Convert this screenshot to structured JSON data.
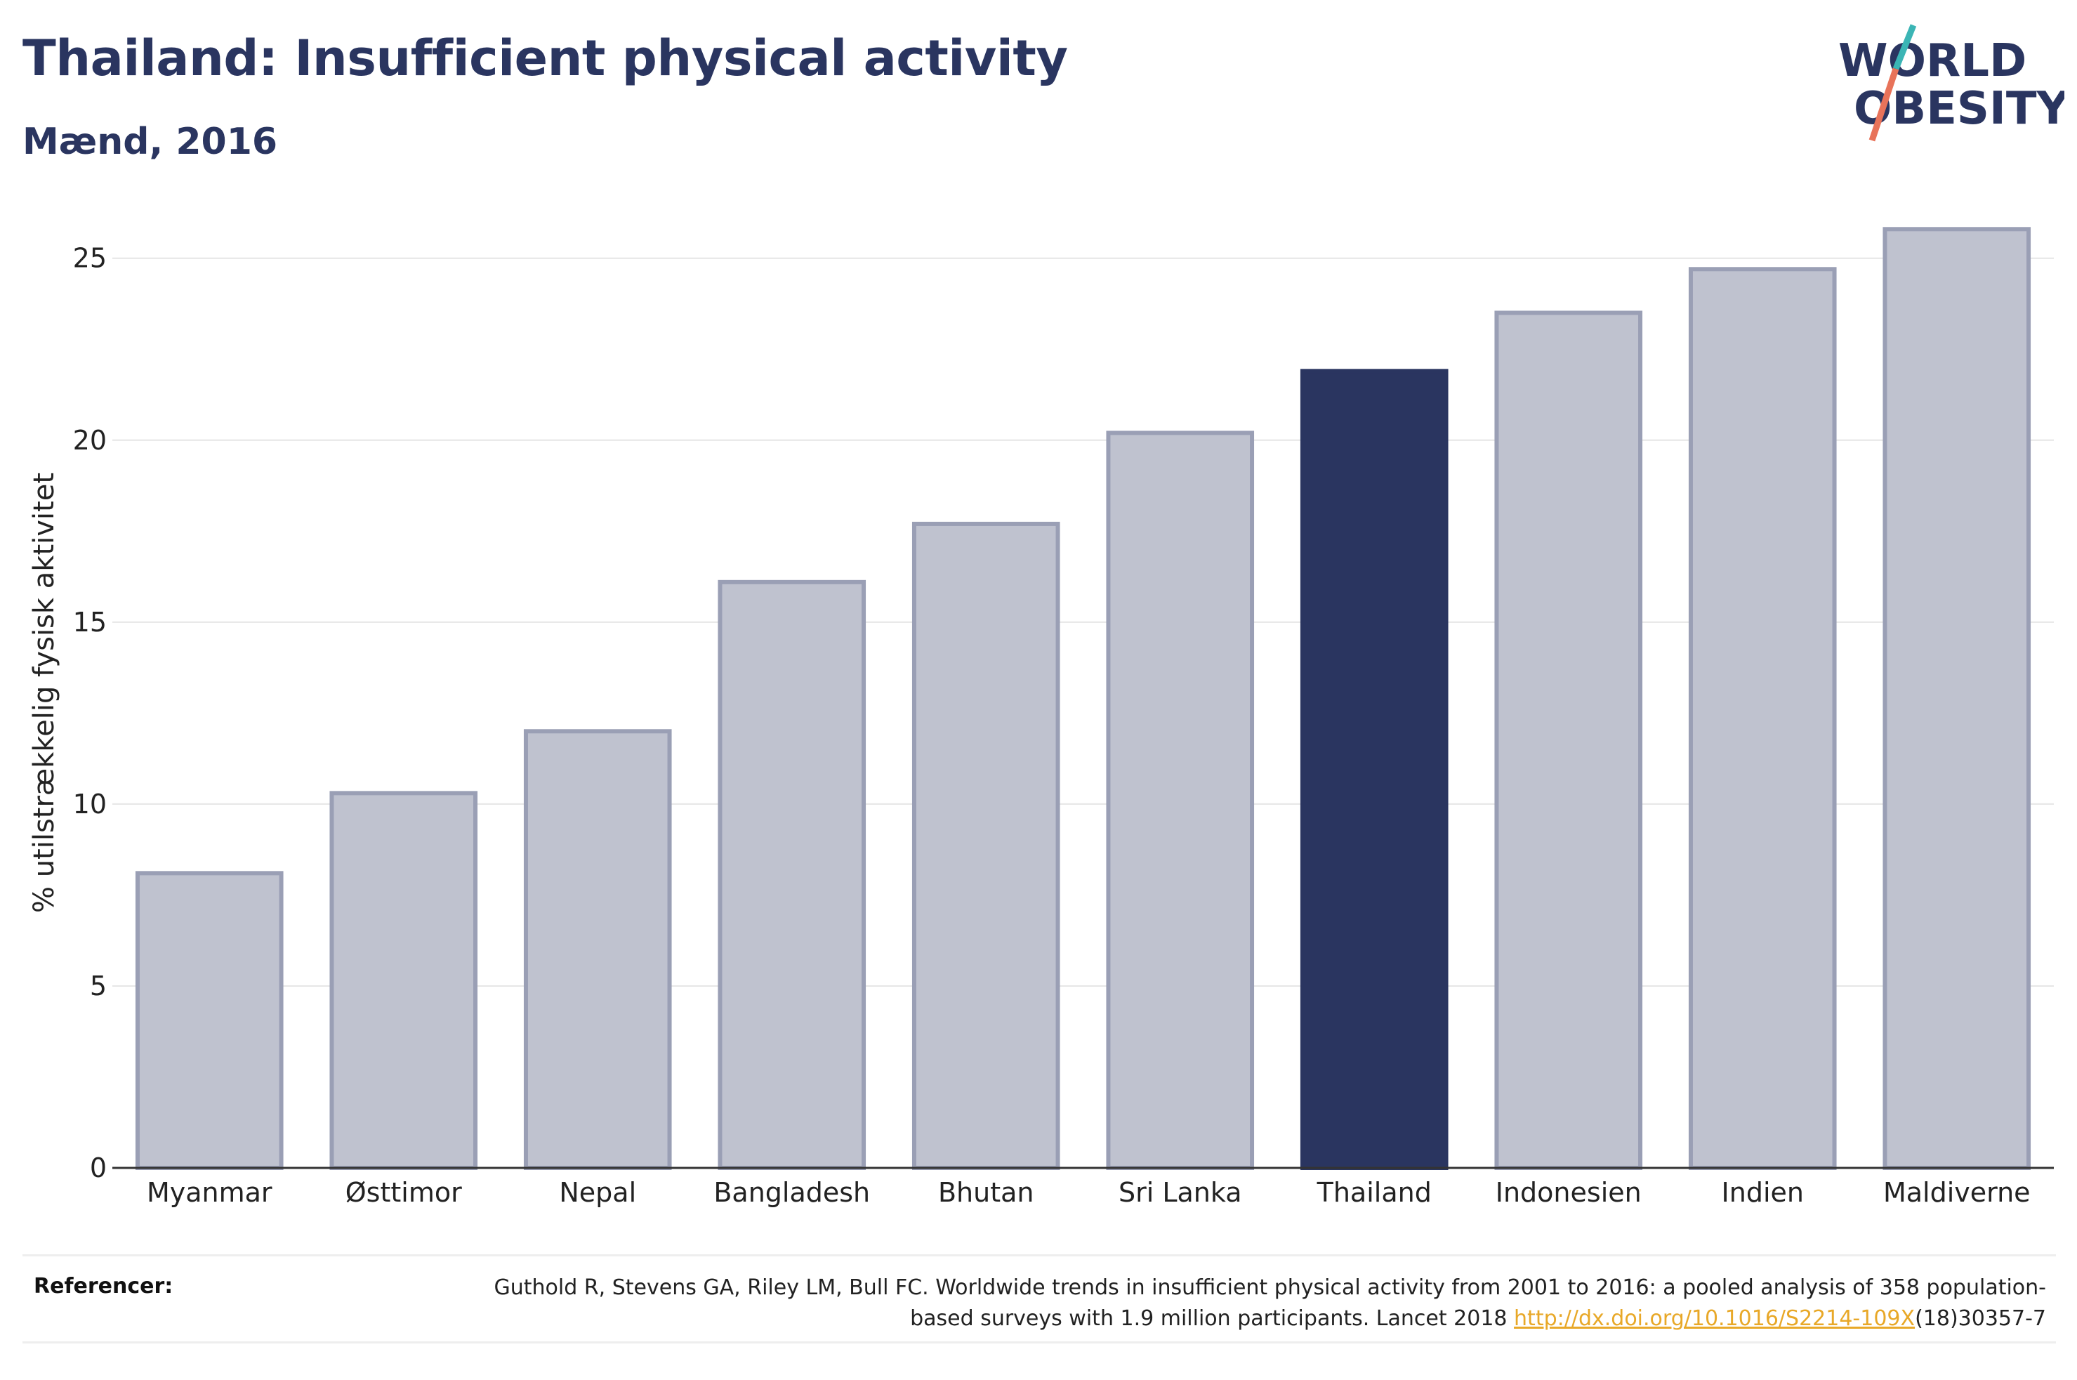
{
  "header": {
    "title": "Thailand: Insufficient physical activity",
    "subtitle": "Mænd, 2016"
  },
  "logo": {
    "line1": "WORLD",
    "line2": "OBESITY",
    "colors": {
      "text": "#2a3560",
      "slash_teal": "#3bb5b5",
      "slash_coral": "#e8735a"
    }
  },
  "chart_data": {
    "type": "bar",
    "title": "Thailand: Insufficient physical activity",
    "subtitle": "Mænd, 2016",
    "xlabel": "",
    "ylabel": "% utilstrækkelig fysisk aktivitet",
    "categories": [
      "Myanmar",
      "Østtimor",
      "Nepal",
      "Bangladesh",
      "Bhutan",
      "Sri Lanka",
      "Thailand",
      "Indonesien",
      "Indien",
      "Maldiverne"
    ],
    "values": [
      8.1,
      10.3,
      12.0,
      16.1,
      17.7,
      20.2,
      21.9,
      23.5,
      24.7,
      25.8
    ],
    "highlight": "Thailand",
    "ylim": [
      0,
      26.5
    ],
    "yticks": [
      0,
      5,
      10,
      15,
      20,
      25
    ],
    "grid": true,
    "colors": {
      "bar": "#bfc2cf",
      "bar_border": "#9a9fb5",
      "highlight": "#2a3560"
    }
  },
  "footer": {
    "label": "Referencer:",
    "text": "Guthold R, Stevens GA, Riley LM, Bull FC. Worldwide trends in insufficient physical activity from 2001 to 2016: a pooled analysis of 358 population-based surveys with 1.9 million participants. Lancet 2018 ",
    "link": "http://dx.doi.org/10.1016/S2214-109X",
    "suffix": "(18)30357-7"
  }
}
